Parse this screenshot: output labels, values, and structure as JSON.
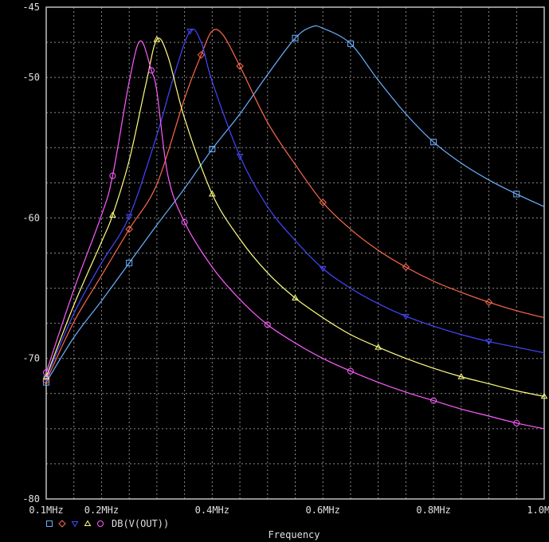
{
  "chart_data": {
    "type": "line",
    "xlabel": "Frequency",
    "ylabel": "",
    "xlim": [
      0.1,
      1.0
    ],
    "ylim": [
      -80,
      -45
    ],
    "x_ticks": [
      {
        "value": 0.1,
        "label": "0.1MHz"
      },
      {
        "value": 0.2,
        "label": "0.2MHz"
      },
      {
        "value": 0.4,
        "label": "0.4MHz"
      },
      {
        "value": 0.6,
        "label": "0.6MHz"
      },
      {
        "value": 0.8,
        "label": "0.8MHz"
      },
      {
        "value": 1.0,
        "label": "1.0MHz"
      }
    ],
    "y_ticks": [
      {
        "value": -45,
        "label": "-45"
      },
      {
        "value": -50,
        "label": "-50"
      },
      {
        "value": -60,
        "label": "-60"
      },
      {
        "value": -70,
        "label": "-70"
      },
      {
        "value": -80,
        "label": "-80"
      }
    ],
    "grid": true,
    "background": "#000000",
    "legend_label": "DB(V(OUT))",
    "series": [
      {
        "color": "#6ab0ff",
        "marker": "square",
        "x": [
          0.1,
          0.15,
          0.2,
          0.25,
          0.3,
          0.35,
          0.4,
          0.45,
          0.5,
          0.55,
          0.58,
          0.6,
          0.65,
          0.7,
          0.75,
          0.8,
          0.85,
          0.9,
          0.95,
          1.0
        ],
        "y": [
          -71.7,
          -68.5,
          -65.9,
          -63.2,
          -60.5,
          -57.9,
          -55.1,
          -52.6,
          -49.8,
          -47.2,
          -46.4,
          -46.5,
          -47.6,
          -50.2,
          -52.6,
          -54.6,
          -56.1,
          -57.3,
          -58.3,
          -59.2
        ]
      },
      {
        "color": "#ff6a4d",
        "marker": "diamond",
        "x": [
          0.1,
          0.15,
          0.2,
          0.25,
          0.3,
          0.35,
          0.38,
          0.4,
          0.42,
          0.45,
          0.5,
          0.55,
          0.6,
          0.65,
          0.7,
          0.75,
          0.8,
          0.85,
          0.9,
          0.95,
          1.0
        ],
        "y": [
          -71.6,
          -67.4,
          -64.1,
          -60.8,
          -57.6,
          -51.5,
          -48.4,
          -46.7,
          -47.0,
          -49.2,
          -53.2,
          -56.2,
          -58.9,
          -60.8,
          -62.3,
          -63.5,
          -64.5,
          -65.3,
          -66.0,
          -66.6,
          -67.1
        ]
      },
      {
        "color": "#4646ff",
        "marker": "triangle-down",
        "x": [
          0.1,
          0.15,
          0.2,
          0.25,
          0.3,
          0.33,
          0.36,
          0.38,
          0.4,
          0.45,
          0.5,
          0.55,
          0.6,
          0.65,
          0.7,
          0.75,
          0.8,
          0.85,
          0.9,
          0.95,
          1.0
        ],
        "y": [
          -71.4,
          -66.8,
          -63.2,
          -59.9,
          -54.1,
          -50.0,
          -46.7,
          -47.5,
          -50.3,
          -55.6,
          -59.2,
          -61.6,
          -63.6,
          -65.0,
          -66.1,
          -67.0,
          -67.7,
          -68.3,
          -68.8,
          -69.2,
          -69.6
        ]
      },
      {
        "color": "#ffff80",
        "marker": "triangle",
        "x": [
          0.1,
          0.15,
          0.2,
          0.22,
          0.25,
          0.28,
          0.3,
          0.32,
          0.35,
          0.4,
          0.45,
          0.5,
          0.55,
          0.6,
          0.65,
          0.7,
          0.75,
          0.8,
          0.85,
          0.9,
          0.95,
          1.0
        ],
        "y": [
          -71.3,
          -66.2,
          -61.7,
          -59.8,
          -55.9,
          -50.5,
          -47.3,
          -48.5,
          -52.9,
          -58.3,
          -61.5,
          -63.9,
          -65.7,
          -67.1,
          -68.3,
          -69.2,
          -70.0,
          -70.7,
          -71.3,
          -71.8,
          -72.3,
          -72.7
        ]
      },
      {
        "color": "#ff5cff",
        "marker": "circle",
        "x": [
          0.1,
          0.15,
          0.2,
          0.22,
          0.25,
          0.27,
          0.29,
          0.3,
          0.32,
          0.35,
          0.4,
          0.45,
          0.5,
          0.55,
          0.6,
          0.65,
          0.7,
          0.75,
          0.8,
          0.85,
          0.9,
          0.95,
          1.0
        ],
        "y": [
          -71.0,
          -65.1,
          -59.8,
          -57.0,
          -50.3,
          -47.4,
          -49.5,
          -51.0,
          -57.0,
          -60.3,
          -63.5,
          -65.8,
          -67.6,
          -68.9,
          -70.0,
          -70.9,
          -71.7,
          -72.4,
          -73.0,
          -73.6,
          -74.1,
          -74.6,
          -75.0
        ]
      }
    ]
  }
}
